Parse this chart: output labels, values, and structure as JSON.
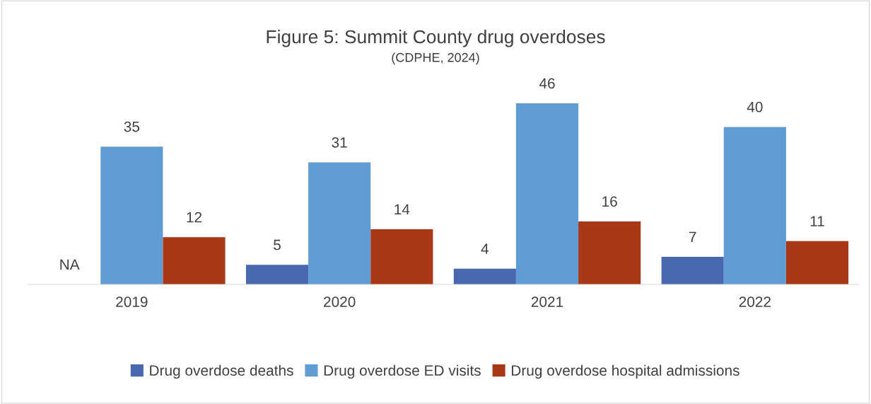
{
  "chart_data": {
    "type": "bar",
    "title": "Figure 5: Summit County drug overdoses",
    "subtitle": "(CDPHE, 2024)",
    "categories": [
      "2019",
      "2020",
      "2021",
      "2022"
    ],
    "series": [
      {
        "name": "Drug overdose deaths",
        "color": "#4868b0",
        "values": [
          null,
          5,
          4,
          7
        ],
        "value_labels": [
          "NA",
          "5",
          "4",
          "7"
        ]
      },
      {
        "name": "Drug overdose ED visits",
        "color": "#5e9cd3",
        "values": [
          35,
          31,
          46,
          40
        ],
        "value_labels": [
          "35",
          "31",
          "46",
          "40"
        ]
      },
      {
        "name": "Drug overdose hospital admissions",
        "color": "#a93817",
        "values": [
          12,
          14,
          16,
          11
        ],
        "value_labels": [
          "12",
          "14",
          "16",
          "11"
        ]
      }
    ],
    "legend": "bottom",
    "grid": false
  }
}
